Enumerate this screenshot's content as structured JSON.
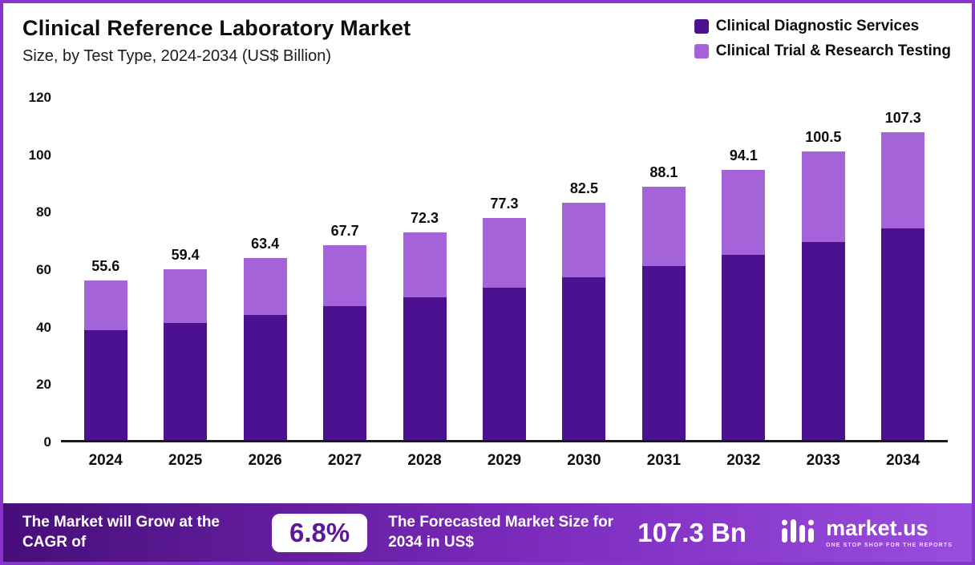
{
  "header": {
    "title": "Clinical Reference Laboratory Market",
    "subtitle": "Size, by Test Type, 2024-2034 (US$ Billion)"
  },
  "legend": [
    {
      "label": "Clinical Diagnostic Services",
      "color": "#4b1191"
    },
    {
      "label": "Clinical Trial & Research Testing",
      "color": "#a563d9"
    }
  ],
  "chart_data": {
    "type": "bar",
    "stacked": true,
    "title": "Clinical Reference Laboratory Market Size, by Test Type, 2024-2034 (US$ Billion)",
    "categories": [
      "2024",
      "2025",
      "2026",
      "2027",
      "2028",
      "2029",
      "2030",
      "2031",
      "2032",
      "2033",
      "2034"
    ],
    "series": [
      {
        "name": "Clinical Diagnostic Services",
        "color": "#4b1191",
        "values": [
          38.1,
          40.8,
          43.5,
          46.5,
          49.7,
          53.1,
          56.7,
          60.5,
          64.6,
          69.0,
          73.7
        ]
      },
      {
        "name": "Clinical Trial & Research Testing",
        "color": "#a563d9",
        "values": [
          17.5,
          18.6,
          19.9,
          21.2,
          22.6,
          24.2,
          25.8,
          27.6,
          29.5,
          31.5,
          33.6
        ]
      }
    ],
    "totals": [
      55.6,
      59.4,
      63.4,
      67.7,
      72.3,
      77.3,
      82.5,
      88.1,
      94.1,
      100.5,
      107.3
    ],
    "total_labels": [
      "55.6",
      "59.4",
      "63.4",
      "67.7",
      "72.3",
      "77.3",
      "82.5",
      "88.1",
      "94.1",
      "100.5",
      "107.3"
    ],
    "xlabel": "",
    "ylabel": "",
    "ylim": [
      0,
      120
    ],
    "ytick_step": 20,
    "grid": false,
    "legend_position": "top-right"
  },
  "footer": {
    "cagr_label": "The Market will Grow at the CAGR of",
    "cagr_value": "6.8%",
    "forecast_label": "The Forecasted Market Size for 2034 in US$",
    "forecast_value": "107.3 Bn",
    "brand": "market.us",
    "brand_tagline": "ONE STOP SHOP FOR THE REPORTS"
  }
}
